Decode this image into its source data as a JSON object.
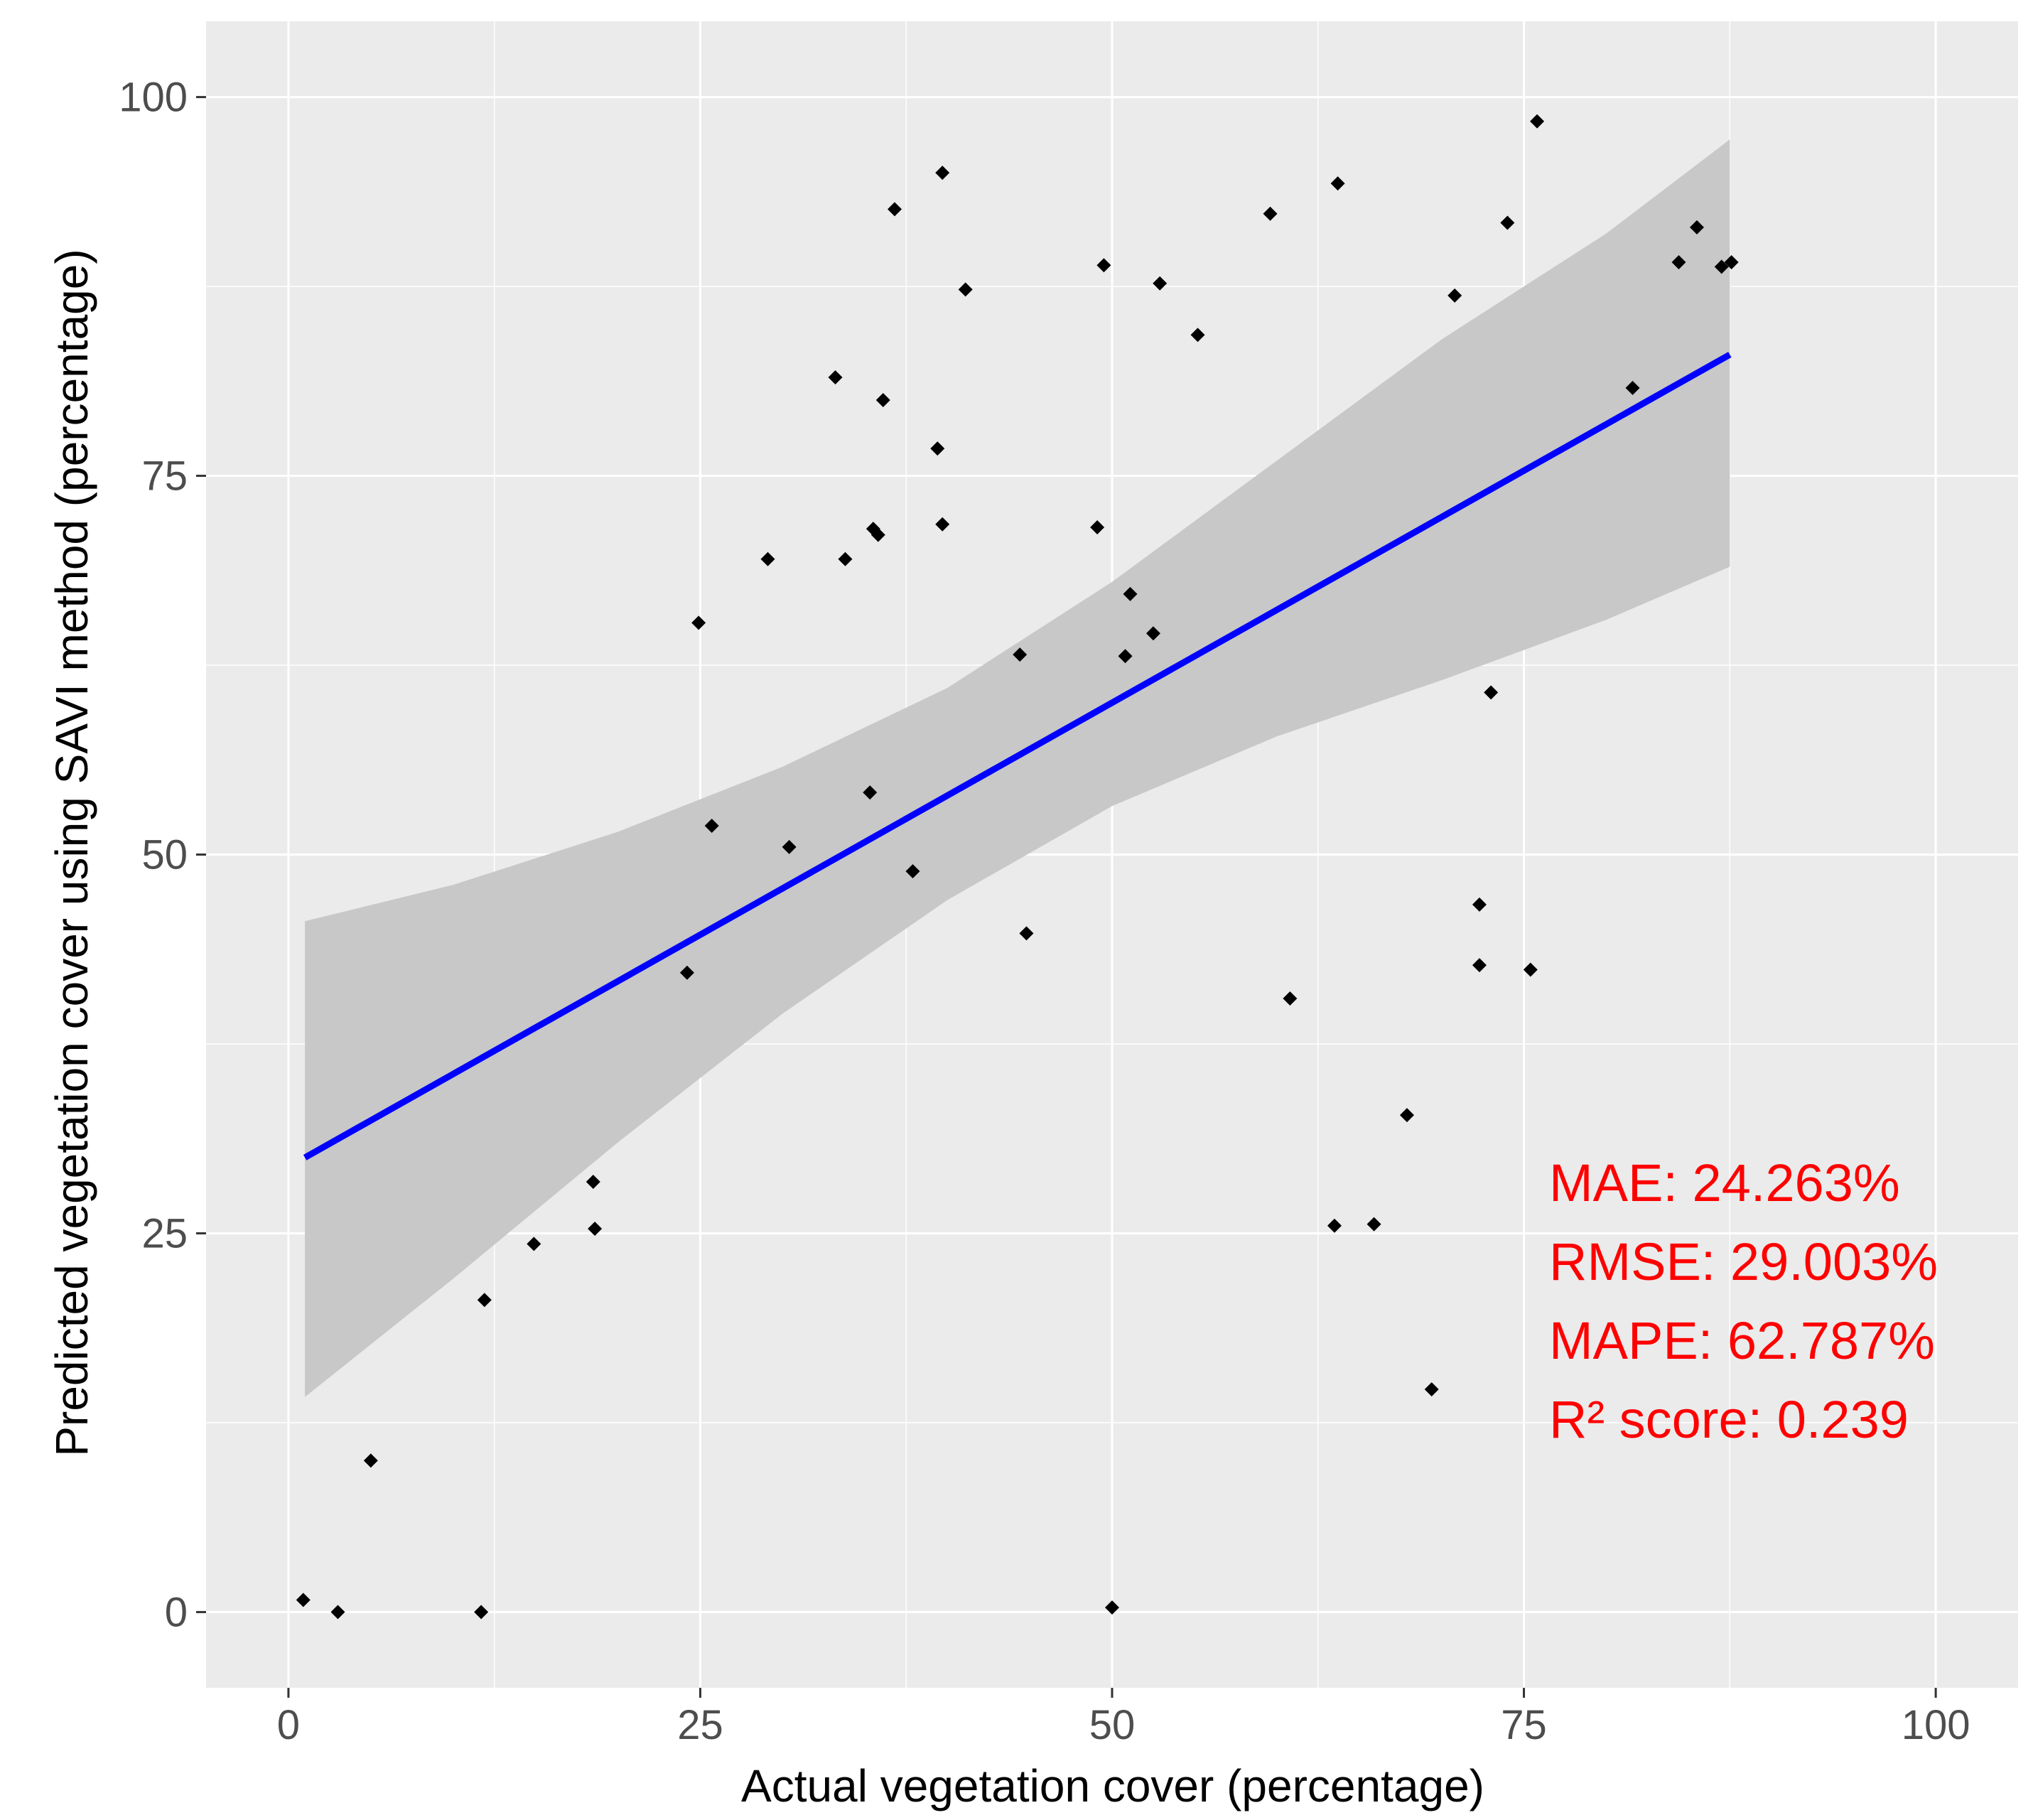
{
  "chart_data": {
    "type": "scatter",
    "xlabel": "Actual vegetation cover (percentage)",
    "ylabel": "Predicted vegetation cover using SAVI method (percentage)",
    "xlim": [
      -5,
      105
    ],
    "ylim": [
      -5,
      105
    ],
    "xticks": [
      0,
      25,
      50,
      75,
      100
    ],
    "yticks": [
      0,
      25,
      50,
      75,
      100
    ],
    "grid": true,
    "panel_background": "#ebebeb",
    "point_color": "#000000",
    "regression": {
      "method": "linear",
      "x_range": [
        1,
        87.5
      ],
      "start_y": 30.0,
      "end_y": 83.0,
      "line_color": "#0000ff",
      "band_color": "#c8c8c8",
      "band_upper": [
        [
          1,
          45.6
        ],
        [
          10,
          48.0
        ],
        [
          20,
          51.5
        ],
        [
          30,
          55.8
        ],
        [
          40,
          61.0
        ],
        [
          50,
          68.0
        ],
        [
          60,
          76.0
        ],
        [
          70,
          84.0
        ],
        [
          80,
          91.0
        ],
        [
          87.5,
          97.2
        ]
      ],
      "band_lower": [
        [
          1,
          14.2
        ],
        [
          10,
          22.0
        ],
        [
          20,
          31.0
        ],
        [
          30,
          39.5
        ],
        [
          40,
          47.0
        ],
        [
          50,
          53.2
        ],
        [
          60,
          57.8
        ],
        [
          70,
          61.5
        ],
        [
          80,
          65.5
        ],
        [
          87.5,
          69.0
        ]
      ]
    },
    "points": [
      [
        0.9,
        0.8
      ],
      [
        3,
        0
      ],
      [
        5,
        10
      ],
      [
        11.7,
        0
      ],
      [
        11.9,
        20.6
      ],
      [
        14.9,
        24.3
      ],
      [
        18.5,
        28.4
      ],
      [
        18.6,
        25.3
      ],
      [
        24.2,
        42.2
      ],
      [
        24.9,
        65.3
      ],
      [
        25.7,
        51.9
      ],
      [
        29.1,
        69.5
      ],
      [
        30.4,
        50.5
      ],
      [
        33.2,
        81.5
      ],
      [
        33.8,
        69.5
      ],
      [
        35.3,
        54.1
      ],
      [
        35.5,
        71.5
      ],
      [
        35.8,
        71.1
      ],
      [
        36.1,
        80.0
      ],
      [
        36.8,
        92.6
      ],
      [
        37.9,
        48.9
      ],
      [
        39.4,
        76.8
      ],
      [
        39.7,
        95.0
      ],
      [
        39.7,
        71.8
      ],
      [
        41.1,
        87.3
      ],
      [
        44.4,
        63.2
      ],
      [
        44.8,
        44.8
      ],
      [
        49.1,
        71.6
      ],
      [
        49.5,
        88.9
      ],
      [
        50,
        0.3
      ],
      [
        50.8,
        63.1
      ],
      [
        51.1,
        67.2
      ],
      [
        52.5,
        64.6
      ],
      [
        52.9,
        87.7
      ],
      [
        55.2,
        84.3
      ],
      [
        59.6,
        92.3
      ],
      [
        60.8,
        40.5
      ],
      [
        63.5,
        25.5
      ],
      [
        63.7,
        94.3
      ],
      [
        65.9,
        25.6
      ],
      [
        67.9,
        32.8
      ],
      [
        69.4,
        14.7
      ],
      [
        70.8,
        86.9
      ],
      [
        72.3,
        42.7
      ],
      [
        72.3,
        46.7
      ],
      [
        73,
        60.7
      ],
      [
        74,
        91.7
      ],
      [
        75.4,
        42.4
      ],
      [
        75.8,
        98.4
      ],
      [
        81.6,
        80.8
      ],
      [
        84.4,
        89.1
      ],
      [
        85.5,
        91.4
      ],
      [
        87,
        88.8
      ],
      [
        87.6,
        89.1
      ]
    ],
    "annotations": [
      "MAE: 24.263%",
      "RMSE: 29.003%",
      "MAPE: 62.787%",
      "R² score: 0.239"
    ],
    "annotation_color": "#ff0000"
  }
}
